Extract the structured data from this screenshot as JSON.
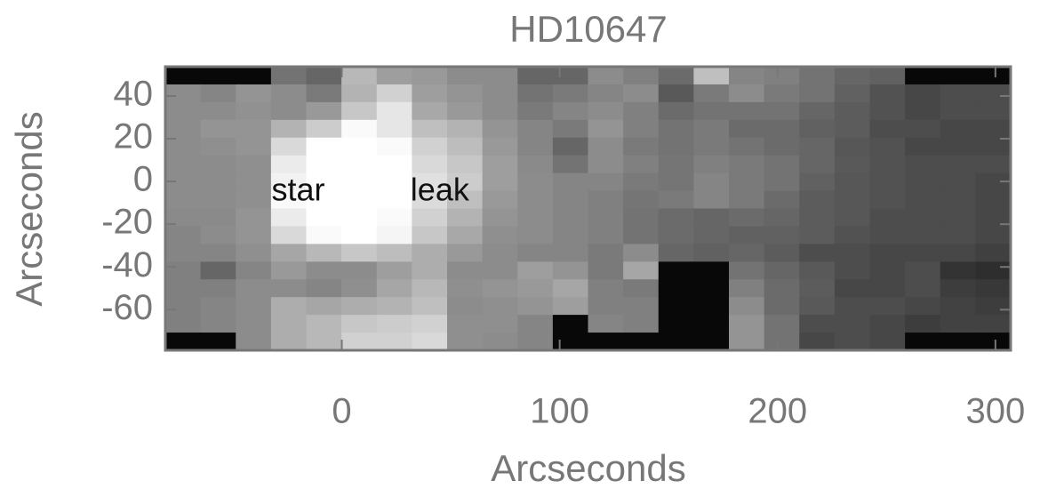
{
  "chart_data": {
    "type": "heatmap",
    "title": "HD10647",
    "xlabel": "Arcseconds",
    "ylabel": "Arcseconds",
    "xlim": [
      -81,
      307
    ],
    "ylim": [
      -79,
      53.7
    ],
    "xticks": [
      0,
      100,
      200,
      300
    ],
    "yticks": [
      40,
      20,
      0,
      -20,
      -40,
      -60
    ],
    "colormap": "gray",
    "zlim": [
      0,
      100
    ],
    "z": [
      [
        3,
        3,
        3,
        45,
        40,
        72,
        62,
        60,
        55,
        55,
        40,
        40,
        55,
        50,
        42,
        75,
        52,
        50,
        45,
        40,
        38,
        3,
        3,
        3
      ],
      [
        55,
        52,
        58,
        55,
        48,
        70,
        82,
        62,
        58,
        55,
        45,
        48,
        52,
        55,
        35,
        48,
        55,
        48,
        45,
        38,
        32,
        28,
        30,
        30
      ],
      [
        55,
        55,
        57,
        55,
        60,
        78,
        90,
        66,
        60,
        55,
        48,
        52,
        55,
        50,
        42,
        45,
        45,
        45,
        40,
        36,
        32,
        28,
        30,
        30
      ],
      [
        55,
        58,
        58,
        70,
        80,
        98,
        90,
        75,
        70,
        58,
        52,
        48,
        58,
        50,
        45,
        48,
        42,
        42,
        38,
        36,
        30,
        30,
        28,
        28
      ],
      [
        55,
        56,
        58,
        85,
        100,
        100,
        98,
        82,
        74,
        60,
        52,
        40,
        55,
        48,
        45,
        48,
        45,
        42,
        40,
        34,
        32,
        28,
        28,
        28
      ],
      [
        55,
        55,
        56,
        92,
        100,
        100,
        100,
        85,
        78,
        62,
        54,
        45,
        55,
        50,
        46,
        50,
        48,
        45,
        40,
        35,
        32,
        30,
        30,
        30
      ],
      [
        55,
        55,
        56,
        95,
        100,
        100,
        100,
        88,
        80,
        62,
        55,
        52,
        52,
        48,
        46,
        52,
        48,
        45,
        38,
        34,
        32,
        30,
        30,
        28
      ],
      [
        55,
        55,
        56,
        98,
        100,
        100,
        100,
        86,
        75,
        60,
        55,
        52,
        50,
        46,
        48,
        52,
        48,
        42,
        36,
        34,
        32,
        30,
        30,
        28
      ],
      [
        54,
        54,
        58,
        92,
        100,
        100,
        98,
        82,
        70,
        58,
        55,
        52,
        50,
        45,
        42,
        40,
        42,
        40,
        36,
        34,
        30,
        30,
        30,
        28
      ],
      [
        52,
        55,
        58,
        85,
        98,
        100,
        96,
        78,
        66,
        56,
        55,
        52,
        50,
        45,
        42,
        40,
        38,
        38,
        36,
        32,
        30,
        30,
        30,
        28
      ],
      [
        52,
        52,
        56,
        65,
        72,
        78,
        74,
        68,
        60,
        55,
        52,
        52,
        48,
        55,
        40,
        38,
        40,
        36,
        30,
        30,
        28,
        28,
        28,
        25
      ],
      [
        50,
        40,
        52,
        60,
        55,
        55,
        62,
        68,
        55,
        55,
        62,
        58,
        48,
        65,
        3,
        3,
        45,
        40,
        35,
        30,
        28,
        30,
        20,
        18
      ],
      [
        50,
        50,
        55,
        55,
        52,
        56,
        65,
        72,
        56,
        58,
        60,
        65,
        50,
        48,
        3,
        3,
        50,
        42,
        36,
        28,
        28,
        30,
        24,
        22
      ],
      [
        50,
        52,
        55,
        68,
        65,
        68,
        70,
        75,
        55,
        56,
        58,
        62,
        50,
        50,
        3,
        3,
        55,
        42,
        35,
        30,
        30,
        28,
        26,
        24
      ],
      [
        50,
        52,
        55,
        68,
        72,
        78,
        80,
        82,
        56,
        56,
        52,
        3,
        52,
        50,
        3,
        3,
        58,
        45,
        30,
        30,
        28,
        24,
        26,
        26
      ],
      [
        3,
        3,
        55,
        68,
        72,
        82,
        82,
        85,
        56,
        55,
        52,
        3,
        3,
        3,
        3,
        3,
        58,
        45,
        28,
        30,
        28,
        3,
        3,
        3
      ]
    ],
    "annotations": [
      {
        "text": "star",
        "x": -20,
        "y": -5
      },
      {
        "text": "leak",
        "x": 45,
        "y": -5
      }
    ]
  }
}
